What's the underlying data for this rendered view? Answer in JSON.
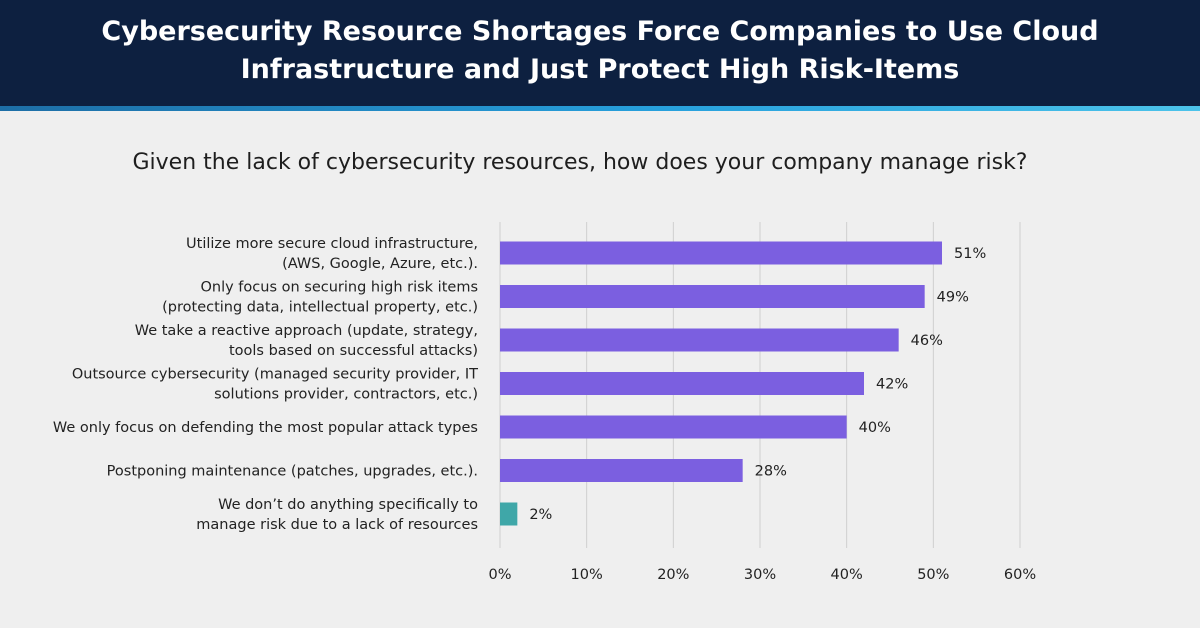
{
  "header": {
    "title": "Cybersecurity Resource Shortages Force Companies to Use Cloud Infrastructure and Just Protect High Risk-Items"
  },
  "chart_data": {
    "type": "bar",
    "orientation": "horizontal",
    "title": "Given the lack of cybersecurity resources, how does your company manage risk?",
    "categories": [
      [
        "Utilize more secure cloud infrastructure,",
        "(AWS, Google, Azure, etc.)."
      ],
      [
        "Only focus on securing high risk items",
        "(protecting data, intellectual property, etc.)"
      ],
      [
        "We take a reactive approach (update, strategy,",
        "tools based on successful attacks)"
      ],
      [
        "Outsource cybersecurity (managed security provider, IT",
        "solutions provider, contractors, etc.)"
      ],
      [
        "We only focus on defending the most popular attack types"
      ],
      [
        "Postponing maintenance (patches, upgrades, etc.)."
      ],
      [
        "We don’t do anything specifically to",
        "manage risk due to a lack of resources"
      ]
    ],
    "values": [
      51,
      49,
      46,
      42,
      40,
      28,
      2
    ],
    "value_labels": [
      "51%",
      "49%",
      "46%",
      "42%",
      "40%",
      "28%",
      "2%"
    ],
    "bar_colors": [
      "#7b5fe0",
      "#7b5fe0",
      "#7b5fe0",
      "#7b5fe0",
      "#7b5fe0",
      "#7b5fe0",
      "#3fa7a8"
    ],
    "xlim": [
      0,
      60
    ],
    "xticks": [
      0,
      10,
      20,
      30,
      40,
      50,
      60
    ],
    "xtick_labels": [
      "0%",
      "10%",
      "20%",
      "30%",
      "40%",
      "50%",
      "60%"
    ],
    "grid": true,
    "grid_color": "#cfcfcf",
    "xlabel": "",
    "ylabel": ""
  }
}
